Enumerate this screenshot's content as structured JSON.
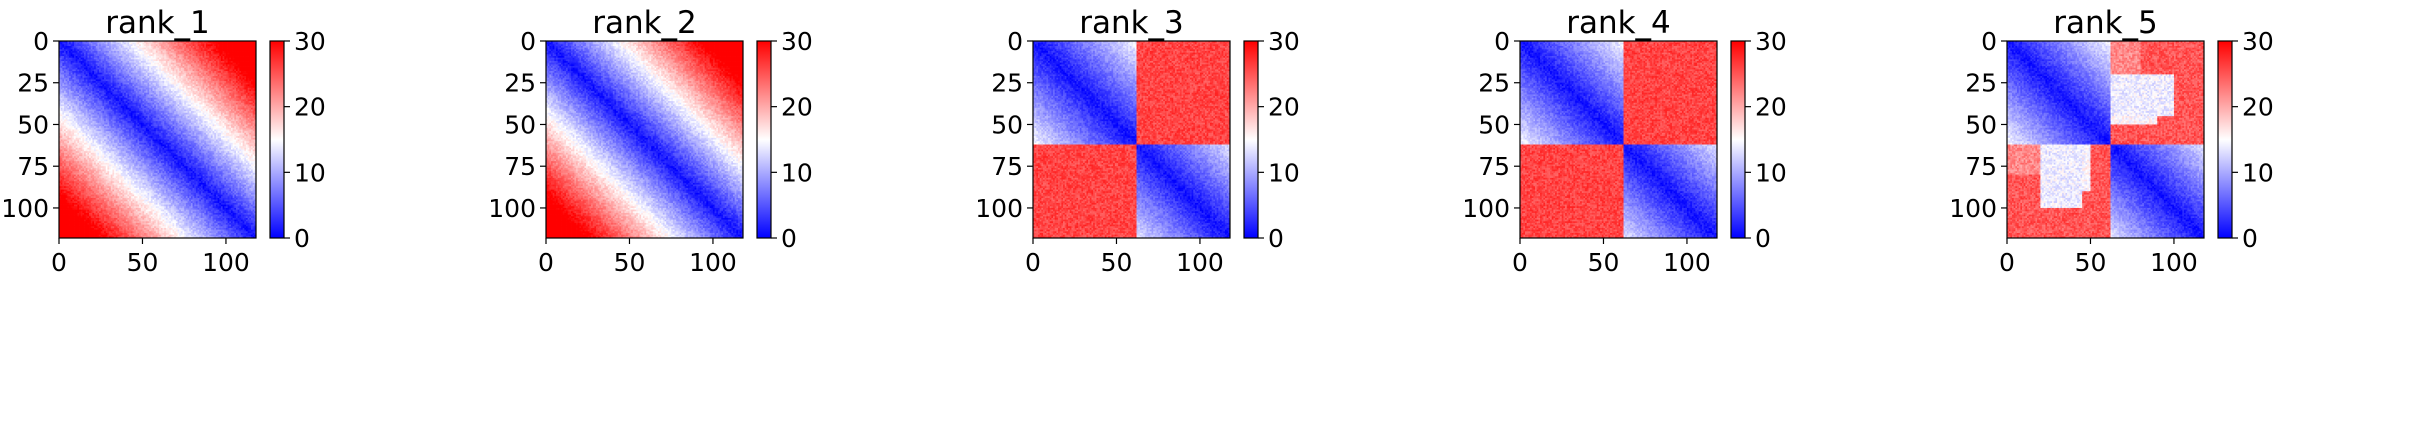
{
  "chart_data": [
    {
      "type": "heatmap",
      "title": "rank_1",
      "n": 118,
      "vmin": 0,
      "vmax": 30,
      "colormap": "bwr",
      "pattern": "diagonal_gradient",
      "x_ticks": [
        0,
        50,
        100
      ],
      "y_ticks": [
        0,
        25,
        50,
        75,
        100
      ],
      "colorbar_ticks": [
        0,
        10,
        20,
        30
      ],
      "xlim": [
        0,
        118
      ],
      "ylim": [
        118,
        0
      ],
      "grid": false
    },
    {
      "type": "heatmap",
      "title": "rank_2",
      "n": 118,
      "vmin": 0,
      "vmax": 30,
      "colormap": "bwr",
      "pattern": "diagonal_gradient",
      "x_ticks": [
        0,
        50,
        100
      ],
      "y_ticks": [
        0,
        25,
        50,
        75,
        100
      ],
      "colorbar_ticks": [
        0,
        10,
        20,
        30
      ],
      "xlim": [
        0,
        118
      ],
      "ylim": [
        118,
        0
      ],
      "grid": false
    },
    {
      "type": "heatmap",
      "title": "rank_3",
      "n": 118,
      "vmin": 0,
      "vmax": 30,
      "colormap": "bwr",
      "pattern": "two_block",
      "split": 62,
      "x_ticks": [
        0,
        50,
        100
      ],
      "y_ticks": [
        0,
        25,
        50,
        75,
        100
      ],
      "colorbar_ticks": [
        0,
        10,
        20,
        30
      ],
      "xlim": [
        0,
        118
      ],
      "ylim": [
        118,
        0
      ],
      "grid": false
    },
    {
      "type": "heatmap",
      "title": "rank_4",
      "n": 118,
      "vmin": 0,
      "vmax": 30,
      "colormap": "bwr",
      "pattern": "two_block",
      "split": 62,
      "x_ticks": [
        0,
        50,
        100
      ],
      "y_ticks": [
        0,
        25,
        50,
        75,
        100
      ],
      "colorbar_ticks": [
        0,
        10,
        20,
        30
      ],
      "xlim": [
        0,
        118
      ],
      "ylim": [
        118,
        0
      ],
      "grid": false
    },
    {
      "type": "heatmap",
      "title": "rank_5",
      "n": 118,
      "vmin": 0,
      "vmax": 30,
      "colormap": "bwr",
      "pattern": "two_block_mixed",
      "split": 62,
      "x_ticks": [
        0,
        50,
        100
      ],
      "y_ticks": [
        0,
        25,
        50,
        75,
        100
      ],
      "colorbar_ticks": [
        0,
        10,
        20,
        30
      ],
      "xlim": [
        0,
        118
      ],
      "ylim": [
        118,
        0
      ],
      "grid": false
    }
  ]
}
